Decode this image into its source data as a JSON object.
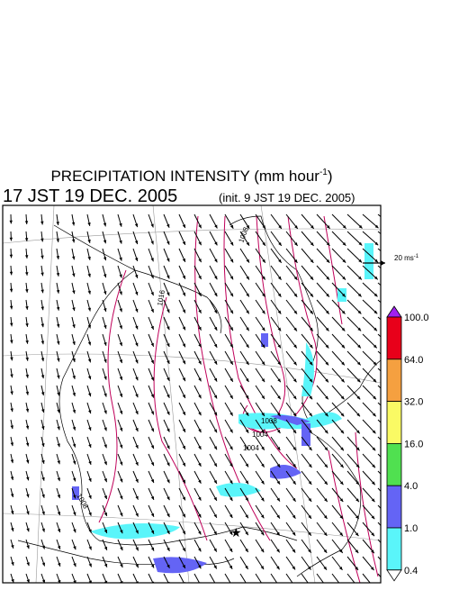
{
  "header": {
    "title": {
      "main": "PRECIPITATION INTENSITY (mm hour",
      "superscript": "-1",
      "close": ")"
    },
    "valid_time": "17 JST 19 DEC. 2005",
    "init_time": "(init. 9 JST 19 DEC. 2005)"
  },
  "reference_vector": {
    "label": "20 ms",
    "superscript": "-1"
  },
  "isobar_labels": [
    "1016",
    "1008",
    "1008",
    "1004",
    "1004",
    "1008"
  ],
  "colorbar": {
    "labels": [
      "100.0",
      "64.0",
      "32.0",
      "16.0",
      "4.0",
      "1.0",
      "0.4"
    ],
    "colors": [
      "#a020f0",
      "#e8001a",
      "#f5a040",
      "#fafa64",
      "#50e050",
      "#6464f5",
      "#5af5fa",
      "#ffffff"
    ]
  }
}
